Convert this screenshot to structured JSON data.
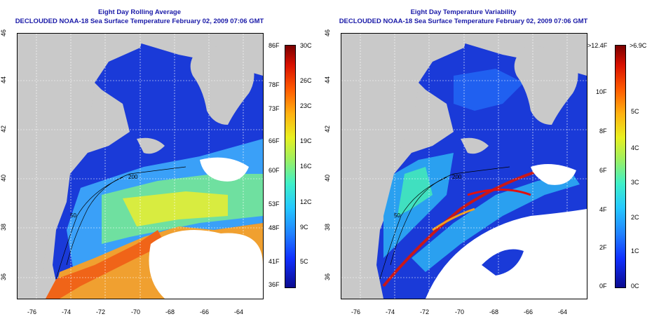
{
  "left_panel": {
    "title_line1": "Eight Day Rolling Average",
    "title_line2": "DECLOUDED NOAA-18 Sea Surface Temperature February 02, 2009 07:06 GMT",
    "x_ticks": [
      "-76",
      "-74",
      "-72",
      "-70",
      "-68",
      "-66",
      "-64"
    ],
    "y_ticks": [
      "36",
      "38",
      "40",
      "42",
      "44",
      "46"
    ],
    "contour_labels": [
      "200",
      "50"
    ],
    "colorbar": {
      "fahrenheit_labels": [
        "86F",
        "78F",
        "73F",
        "66F",
        "60F",
        "53F",
        "48F",
        "41F",
        "36F"
      ],
      "celsius_labels": [
        "30C",
        "26C",
        "23C",
        "19C",
        "16C",
        "12C",
        "9C",
        "5C"
      ]
    }
  },
  "right_panel": {
    "title_line1": "Eight Day Temperature Variability",
    "title_line2": "DECLOUDED NOAA-18 Sea Surface Temperature February 02, 2009 07:06 GMT",
    "x_ticks": [
      "-76",
      "-74",
      "-72",
      "-70",
      "-68",
      "-66",
      "-64"
    ],
    "y_ticks": [
      "36",
      "38",
      "40",
      "42",
      "44",
      "46"
    ],
    "contour_labels": [
      "200",
      "50"
    ],
    "colorbar": {
      "fahrenheit_labels": [
        ">12.4F",
        "10F",
        "8F",
        "6F",
        "4F",
        "2F",
        "0F"
      ],
      "celsius_labels": [
        ">6.9C",
        "5C",
        "4C",
        "3C",
        "2C",
        "1C",
        "0C"
      ]
    }
  },
  "colors": {
    "title": "#1a1aa8",
    "land": "#c9c9c9",
    "cloud": "#ffffff"
  }
}
